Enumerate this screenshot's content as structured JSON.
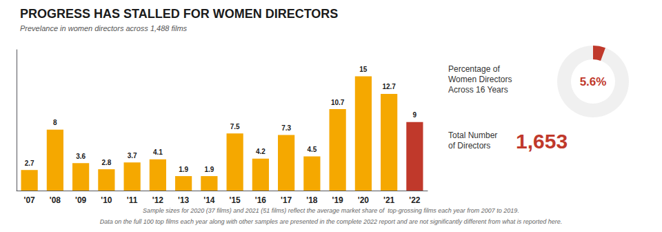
{
  "chart_data": [
    {
      "type": "bar",
      "title": "PROGRESS HAS STALLED FOR WOMEN DIRECTORS",
      "subtitle": "Prevelance in women directors across 1,488 films",
      "categories": [
        "'07",
        "'08",
        "'09",
        "'10",
        "'11",
        "'12",
        "'13",
        "'14",
        "'15",
        "'16",
        "'17",
        "'18",
        "'19",
        "'20",
        "'21",
        "'22"
      ],
      "values": [
        2.7,
        8.0,
        3.6,
        2.8,
        3.7,
        4.1,
        1.9,
        1.9,
        7.5,
        4.2,
        7.3,
        4.5,
        10.7,
        15.0,
        12.7,
        9.0
      ],
      "colors": [
        "#F5A800",
        "#F5A800",
        "#F5A800",
        "#F5A800",
        "#F5A800",
        "#F5A800",
        "#F5A800",
        "#F5A800",
        "#F5A800",
        "#F5A800",
        "#F5A800",
        "#F5A800",
        "#F5A800",
        "#F5A800",
        "#F5A800",
        "#C0392B"
      ],
      "ylim": [
        0,
        18.5
      ],
      "tick_labels": "x",
      "data_labels": true,
      "grid": false,
      "annotations": [
        "Sample sizes for 2020 (37 films) and 2021 (51 films) reflect the average market share of  top-grossing films each year from 2007 to 2019.",
        "Data on the full 100 top films each year along with other samples are presented in the complete 2022 report and are not significantly different from what is reported here."
      ]
    },
    {
      "type": "donut",
      "values": [
        5.6
      ],
      "value_labels": [
        "5.6%"
      ],
      "ylim": [
        0,
        100
      ],
      "colors": [
        "#C0392B"
      ],
      "tick_labels": false,
      "annotations": [
        "Percentage of",
        "Women Directors",
        "Across 16 Years",
        "Total Number",
        "of Directors",
        "1,653"
      ]
    }
  ]
}
